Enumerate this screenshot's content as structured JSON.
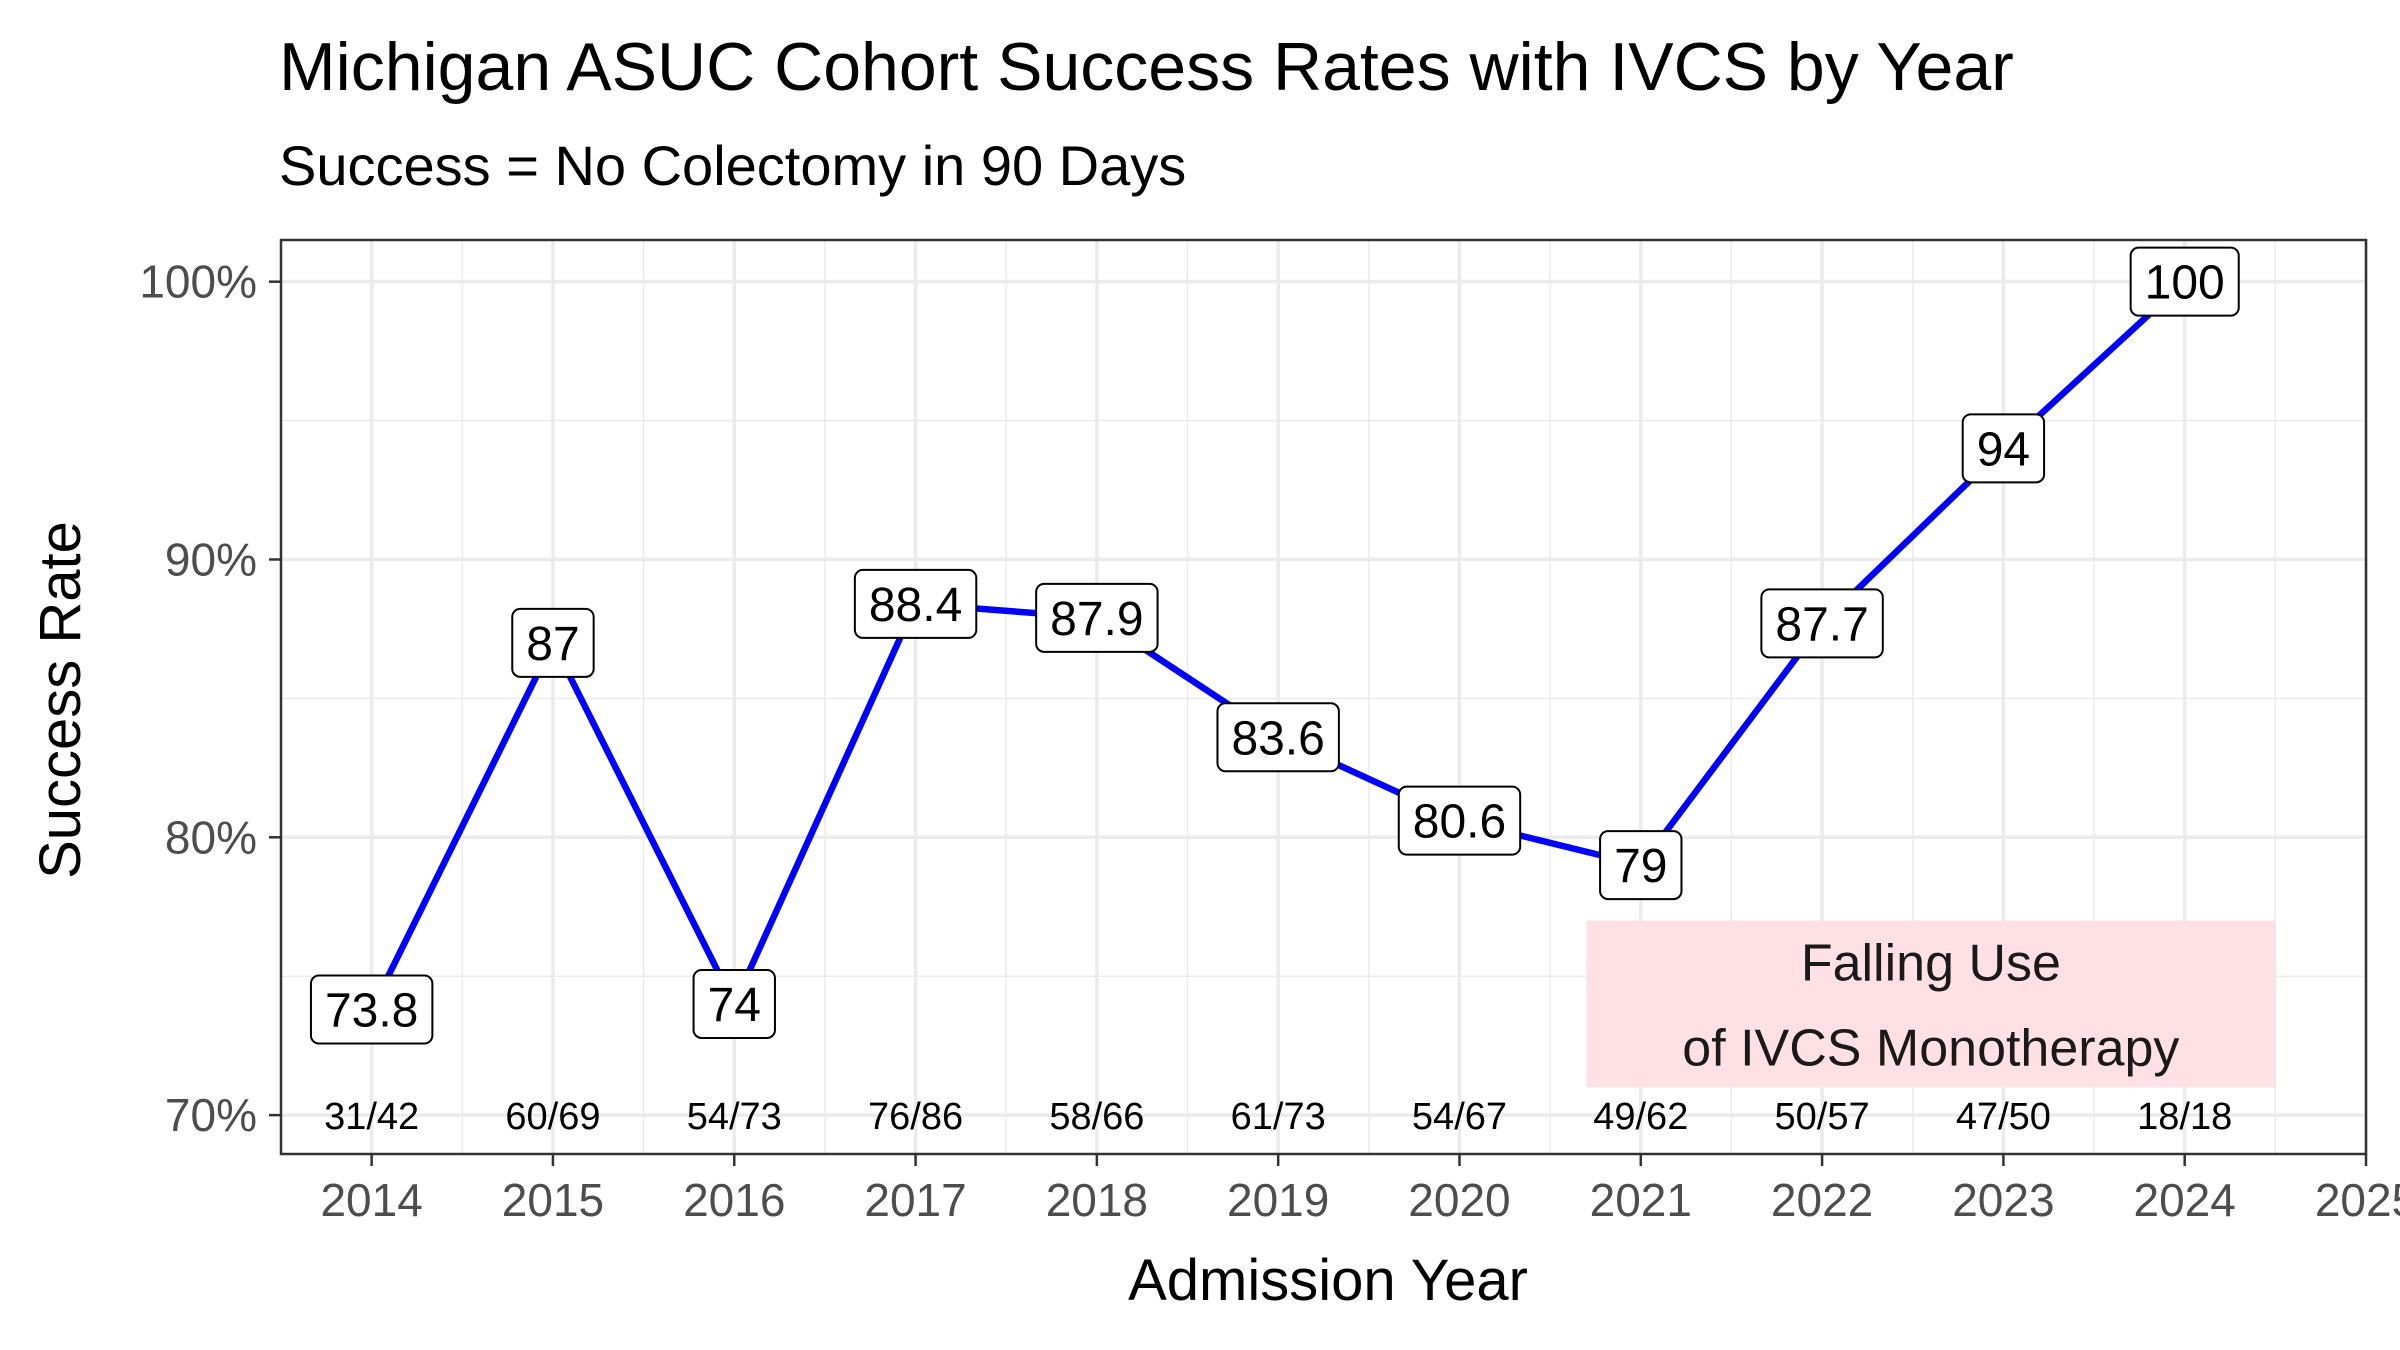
{
  "chart_data": {
    "type": "line",
    "title": "Michigan ASUC Cohort Success Rates with IVCS by Year",
    "subtitle": "Success = No Colectomy in 90 Days",
    "xlabel": "Admission Year",
    "ylabel": "Success Rate",
    "xlim": [
      2013.5,
      2025
    ],
    "ylim": [
      68.6,
      101.5
    ],
    "x_ticks": [
      2014,
      2015,
      2016,
      2017,
      2018,
      2019,
      2020,
      2021,
      2022,
      2023,
      2024,
      2025
    ],
    "y_ticks": [
      70,
      80,
      90,
      100
    ],
    "y_tick_labels": [
      "70%",
      "80%",
      "90%",
      "100%"
    ],
    "grid": true,
    "line_color": "#0000ff",
    "x": [
      2014,
      2015,
      2016,
      2017,
      2018,
      2019,
      2020,
      2021,
      2022,
      2023,
      2024
    ],
    "values": [
      73.8,
      87,
      74,
      88.4,
      87.9,
      83.6,
      80.6,
      79,
      87.7,
      94,
      100
    ],
    "point_labels": [
      "73.8",
      "87",
      "74",
      "88.4",
      "87.9",
      "83.6",
      "80.6",
      "79",
      "87.7",
      "94",
      "100"
    ],
    "counts": [
      "31/42",
      "60/69",
      "54/73",
      "76/86",
      "58/66",
      "61/73",
      "54/67",
      "49/62",
      "50/57",
      "47/50",
      "18/18"
    ],
    "annotation": {
      "lines": [
        "Falling Use",
        "of IVCS Monotherapy"
      ],
      "color": "#ffe0e4",
      "x_range": [
        2020.7,
        2024.5
      ],
      "y_range": [
        71,
        77
      ]
    }
  }
}
